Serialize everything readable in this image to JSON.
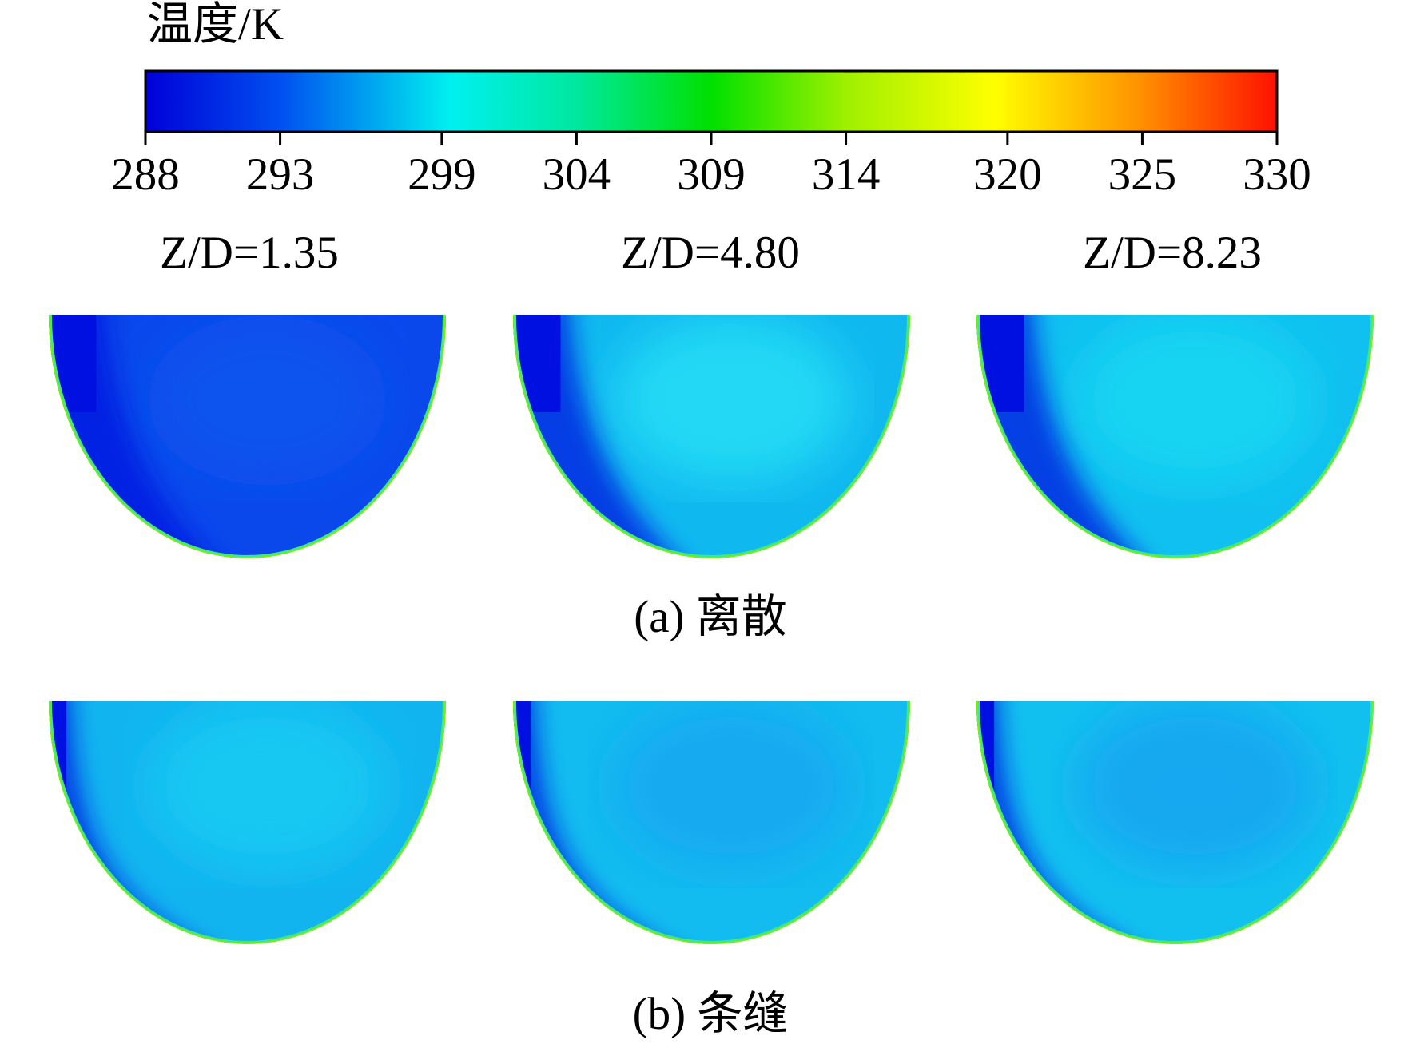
{
  "colorbar": {
    "title": "温度/K",
    "range": [
      288,
      330
    ],
    "ticks": [
      288,
      293,
      299,
      304,
      309,
      314,
      320,
      325,
      330
    ]
  },
  "columns": [
    "Z/D=1.35",
    "Z/D=4.80",
    "Z/D=8.23"
  ],
  "captions": [
    "(a) 离散",
    "(b) 条缝"
  ]
}
